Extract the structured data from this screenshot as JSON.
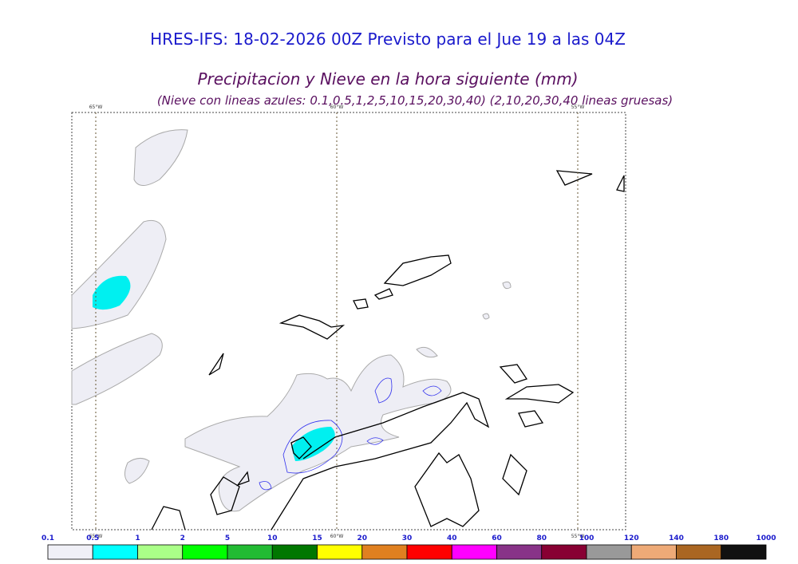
{
  "header": {
    "title": "HRES-IFS: 18-02-2026 00Z Previsto para el Jue 19 a las 04Z",
    "subtitle": "Precipitacion y Nieve en la hora siguiente (mm)",
    "note": "(Nieve con lineas azules: 0.1,0.5,1,2,5,10,15,20,30,40)  (2,10,20,30,40 lineas gruesas)"
  },
  "map": {
    "meridians": [
      "65°W",
      "60°W",
      "55°W"
    ]
  },
  "colorbar": {
    "labels": [
      "0.1",
      "0.5",
      "1",
      "2",
      "5",
      "10",
      "15",
      "20",
      "30",
      "40",
      "60",
      "80",
      "100",
      "120",
      "140",
      "180",
      "1000"
    ],
    "colors": [
      "#f0f0f7",
      "#00ffff",
      "#aaff88",
      "#00ff00",
      "#22bb33",
      "#007700",
      "#ffff00",
      "#e08020",
      "#ff0000",
      "#ff00ff",
      "#883388",
      "#880033",
      "#999999",
      "#eeaa77",
      "#aa6622",
      "#111111"
    ]
  }
}
